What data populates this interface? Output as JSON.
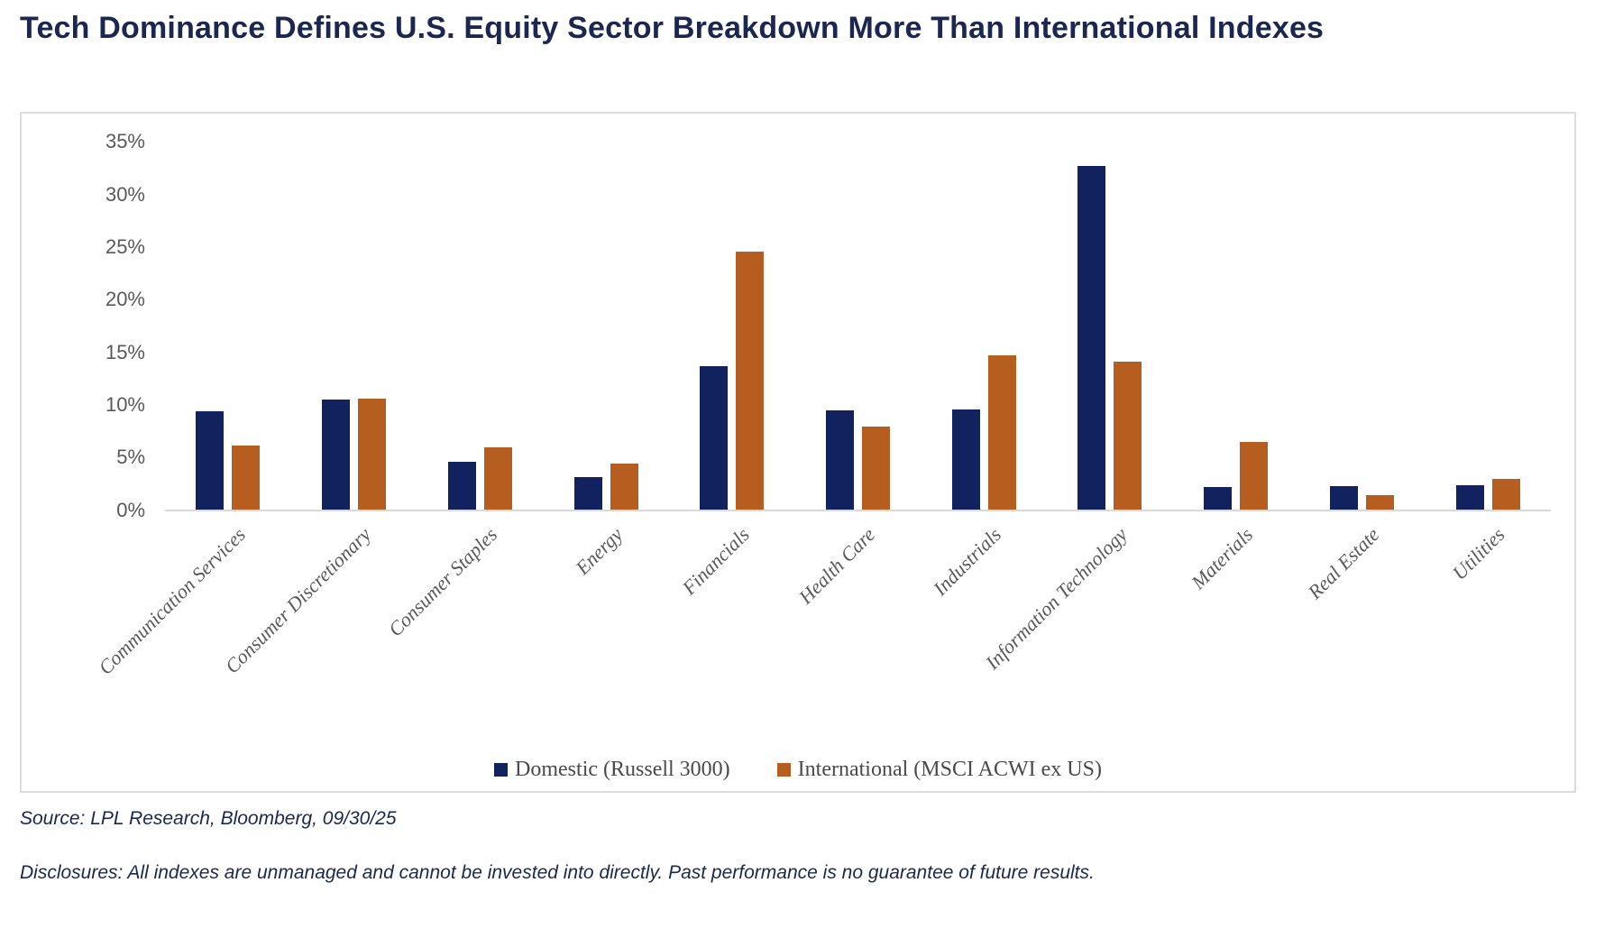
{
  "title": "Tech Dominance Defines U.S. Equity Sector Breakdown More Than International Indexes",
  "source_line": "Source: LPL Research, Bloomberg, 09/30/25",
  "disclosures_line": "Disclosures: All indexes are unmanaged and cannot be invested into directly. Past performance is no guarantee of future results.",
  "colors": {
    "domestic": "#12225e",
    "international": "#b65e20",
    "title_text": "#1b2750",
    "axis_text": "#595959",
    "chart_border": "#dcdcdc",
    "axis_line": "#d9d9d9",
    "legend_text": "#4a4a4a"
  },
  "chart_data": {
    "type": "bar",
    "title": "Tech Dominance Defines U.S. Equity Sector Breakdown More Than International Indexes",
    "categories": [
      "Communication Services",
      "Consumer Discretionary",
      "Consumer Staples",
      "Energy",
      "Financials",
      "Health Care",
      "Industrials",
      "Information Technology",
      "Materials",
      "Real Estate",
      "Utilities"
    ],
    "series": [
      {
        "name": "Domestic (Russell 3000)",
        "color_key": "domestic",
        "values": [
          9.4,
          10.5,
          4.6,
          3.1,
          13.7,
          9.5,
          9.6,
          32.7,
          2.2,
          2.3,
          2.4
        ]
      },
      {
        "name": "International (MSCI ACWI ex US)",
        "color_key": "international",
        "values": [
          6.1,
          10.6,
          6.0,
          4.4,
          24.6,
          7.9,
          14.7,
          14.1,
          6.5,
          1.4,
          3.0
        ]
      }
    ],
    "xlabel": "",
    "ylabel": "",
    "ylim": [
      0,
      35
    ],
    "ytick_step": 5,
    "ytick_labels": [
      "0%",
      "5%",
      "10%",
      "15%",
      "20%",
      "25%",
      "30%",
      "35%"
    ],
    "grid": false,
    "legend_position": "bottom",
    "value_unit": "percent"
  }
}
